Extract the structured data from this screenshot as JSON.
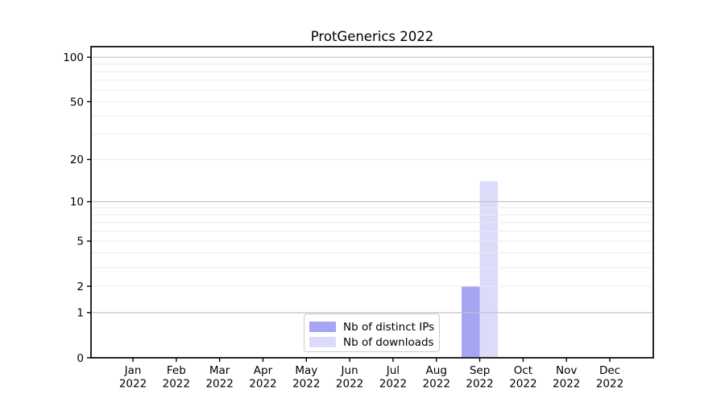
{
  "chart_data": {
    "type": "bar",
    "title": "ProtGenerics 2022",
    "categories": [
      "Jan",
      "Feb",
      "Mar",
      "Apr",
      "May",
      "Jun",
      "Jul",
      "Aug",
      "Sep",
      "Oct",
      "Nov",
      "Dec"
    ],
    "x_tick_year": "2022",
    "series": [
      {
        "name": "Nb of distinct IPs",
        "color": "#a5a5f3",
        "values": [
          0,
          0,
          0,
          0,
          0,
          0,
          0,
          0,
          2,
          0,
          0,
          0
        ]
      },
      {
        "name": "Nb of downloads",
        "color": "#dcdcfa",
        "values": [
          0,
          0,
          0,
          0,
          0,
          0,
          0,
          0,
          14,
          0,
          0,
          0
        ]
      }
    ],
    "yscale": "log1p",
    "ytick_values": [
      0,
      1,
      2,
      5,
      10,
      20,
      50,
      100
    ],
    "major_gridlines": [
      1,
      10,
      100
    ],
    "minor_gridlines": [
      2,
      3,
      4,
      5,
      6,
      7,
      8,
      9,
      20,
      30,
      40,
      50,
      60,
      70,
      80,
      90
    ],
    "ylim": [
      0,
      115
    ],
    "grid": true,
    "legend": {
      "position": "bottom-center",
      "entries": [
        "Nb of distinct IPs",
        "Nb of downloads"
      ]
    },
    "colors": {
      "axis": "#000000",
      "major_grid": "#c3c3c3",
      "minor_grid": "#ececec",
      "legend_border": "#cccccc",
      "background": "#ffffff"
    }
  }
}
